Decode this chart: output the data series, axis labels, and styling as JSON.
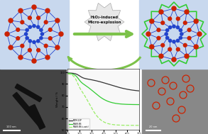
{
  "title_text": "H₂O₂-induced\nMicro-explosion",
  "bg_color": "#ffffff",
  "arrow_color": "#7cc24a",
  "tga_xlabel": "Temperature / °C",
  "tga_ylabel": "Weight / %",
  "tga_legend": [
    "MCM-22P",
    "MWW-NS",
    "MWW-NS(c-axis)"
  ],
  "tga_line_colors": [
    "#333333",
    "#33cc33",
    "#99ee66"
  ],
  "tga_xrange": [
    100,
    700
  ],
  "tga_yrange": [
    60,
    100
  ],
  "zeolite_left_bg": "#c8d8ee",
  "zeolite_right_bg": "#c8d8ee",
  "spike_color": "#33cc33",
  "node_color_red": "#cc2200",
  "node_color_blue": "#2244cc",
  "bond_color": "#2244cc",
  "tem_left_bg": "#444444",
  "tem_right_bg": "#888888",
  "circle_color": "#cc2200",
  "starburst_face": "#e8e8e8",
  "starburst_edge": "#aaaaaa",
  "title_color": "#111111"
}
